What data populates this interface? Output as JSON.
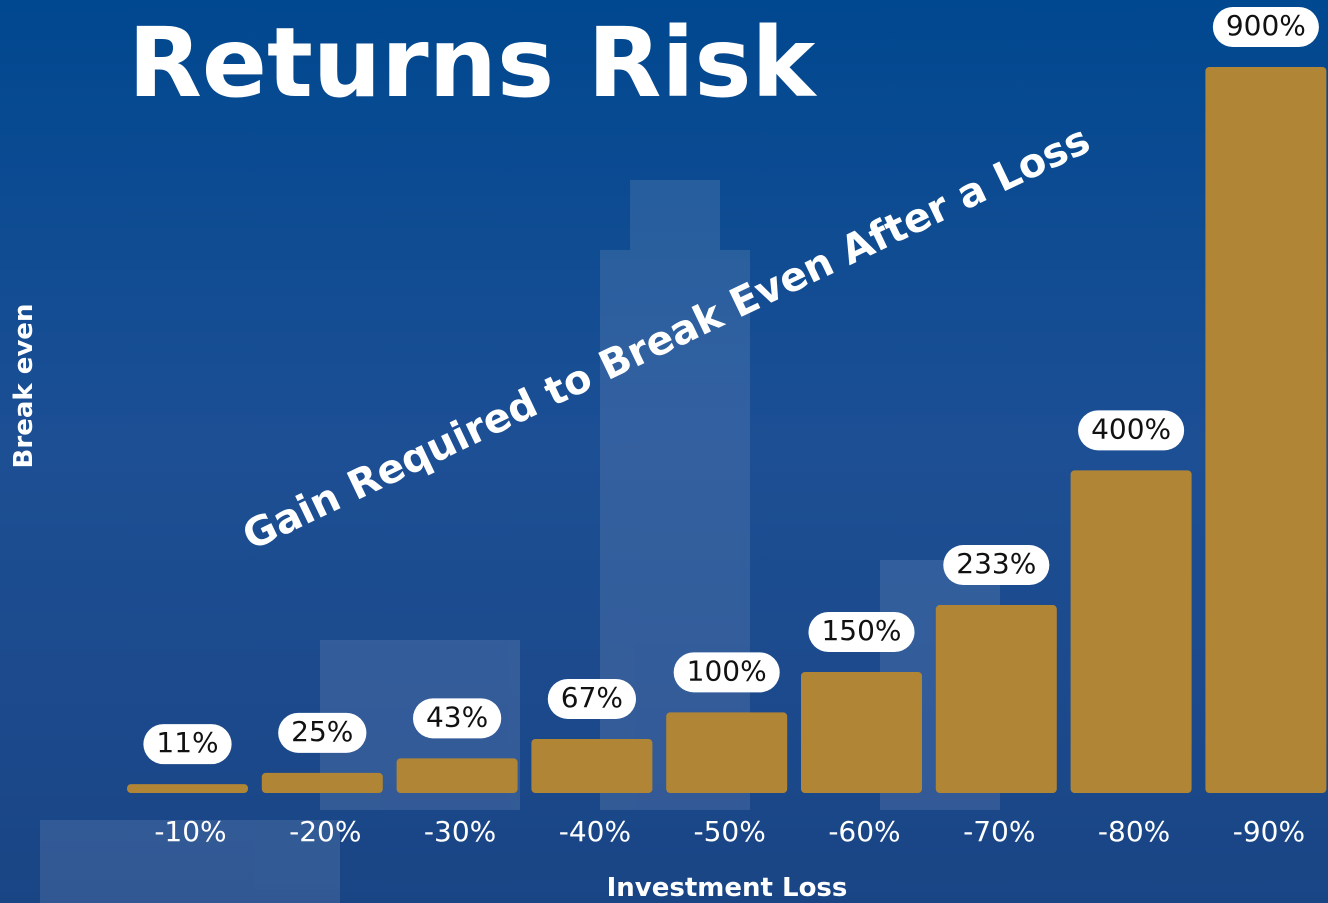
{
  "chart_data": {
    "type": "bar",
    "title": "Returns Risk",
    "annotation": "Gain Required to Break Even After a Loss",
    "x_label": "Investment Loss",
    "y_label": "Break even",
    "categories": [
      "-10%",
      "-20%",
      "-30%",
      "-40%",
      "-50%",
      "-60%",
      "-70%",
      "-80%",
      "-90%"
    ],
    "values": [
      11,
      25,
      43,
      67,
      100,
      150,
      233,
      400,
      900
    ],
    "value_labels": [
      "11%",
      "25%",
      "43%",
      "67%",
      "100%",
      "150%",
      "233%",
      "400%",
      "900%"
    ],
    "color": "#b08535"
  }
}
